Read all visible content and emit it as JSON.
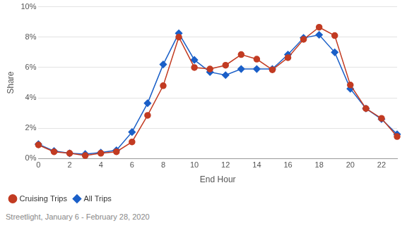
{
  "chart_data": {
    "type": "line",
    "caption": "Streetlight, January 6 - February 28, 2020",
    "x_label": "End Hour",
    "y_label": "Share",
    "x": [
      0,
      1,
      2,
      3,
      4,
      5,
      6,
      7,
      8,
      9,
      10,
      11,
      12,
      13,
      14,
      15,
      16,
      17,
      18,
      19,
      20,
      21,
      22,
      23
    ],
    "series": [
      {
        "name": "Cruising Trips",
        "color": "#c23b22",
        "marker": "circle",
        "values": [
          0.9,
          0.45,
          0.35,
          0.2,
          0.35,
          0.45,
          1.1,
          2.85,
          4.8,
          8.0,
          6.0,
          5.9,
          6.15,
          6.85,
          6.55,
          5.85,
          6.65,
          7.85,
          8.65,
          8.1,
          4.85,
          3.3,
          2.65,
          1.45
        ]
      },
      {
        "name": "All Trips",
        "color": "#1a5fc8",
        "marker": "diamond",
        "values": [
          0.95,
          0.5,
          0.35,
          0.3,
          0.4,
          0.55,
          1.75,
          3.65,
          6.2,
          8.25,
          6.5,
          5.7,
          5.5,
          5.9,
          5.9,
          5.9,
          6.85,
          7.95,
          8.15,
          7.0,
          4.6,
          3.3,
          2.6,
          1.6
        ]
      }
    ],
    "xlim": [
      0,
      23
    ],
    "xticks": [
      0,
      2,
      4,
      6,
      8,
      10,
      12,
      14,
      16,
      18,
      20,
      22
    ],
    "ylim": [
      0,
      10
    ],
    "yticks": [
      {
        "value": 0,
        "label": "0%"
      },
      {
        "value": 2,
        "label": "2%"
      },
      {
        "value": 4,
        "label": "4%"
      },
      {
        "value": 6,
        "label": "6%"
      },
      {
        "value": 8,
        "label": "8%"
      },
      {
        "value": 10,
        "label": "10%"
      }
    ],
    "grid": "y",
    "legend": "bottom-left"
  }
}
